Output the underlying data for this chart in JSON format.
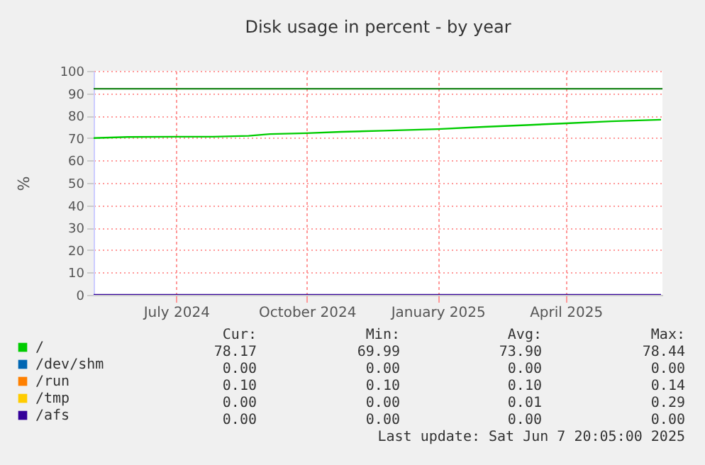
{
  "chart_data": {
    "type": "line",
    "title": "Disk usage in percent - by year",
    "ylabel": "%",
    "x": [
      "2024-05-04",
      "2024-05-28",
      "2024-07-01",
      "2024-07-27",
      "2024-08-21",
      "2024-09-05",
      "2024-10-01",
      "2024-10-25",
      "2024-11-24",
      "2025-01-01",
      "2025-02-02",
      "2025-03-04",
      "2025-04-01",
      "2025-05-03",
      "2025-06-07"
    ],
    "series": [
      {
        "name": "/",
        "color": "#00cc00",
        "values": [
          70.0,
          70.5,
          70.6,
          70.6,
          71.0,
          71.8,
          72.2,
          72.8,
          73.3,
          74.0,
          75.0,
          75.8,
          76.6,
          77.5,
          78.2
        ]
      },
      {
        "name": "/dev/shm",
        "color": "#0066b3",
        "values": [
          null,
          null,
          null,
          null,
          null,
          null,
          null,
          null,
          null,
          null,
          null,
          null,
          null,
          null,
          null
        ]
      },
      {
        "name": "/run",
        "color": "#ff8000",
        "values": [
          null,
          null,
          null,
          null,
          null,
          null,
          null,
          null,
          null,
          null,
          null,
          null,
          null,
          null,
          null
        ]
      },
      {
        "name": "/tmp",
        "color": "#ffcc00",
        "values": [
          null,
          null,
          null,
          null,
          null,
          null,
          null,
          null,
          null,
          null,
          null,
          null,
          null,
          null,
          null
        ]
      },
      {
        "name": "/afs",
        "color": "#330099",
        "values": [
          0,
          0,
          0,
          0,
          0,
          0,
          0,
          0,
          0,
          0,
          0,
          0,
          0,
          0,
          0
        ]
      }
    ],
    "xlim": [
      "2024-05-04",
      "2025-06-08"
    ],
    "xticks": [
      {
        "value": "2024-07-01",
        "label": "July 2024"
      },
      {
        "value": "2024-10-01",
        "label": "October 2024"
      },
      {
        "value": "2025-01-01",
        "label": "January 2025"
      },
      {
        "value": "2025-04-01",
        "label": "April 2025"
      }
    ],
    "ylim": [
      0,
      100
    ],
    "yticks": [
      0,
      10,
      20,
      30,
      40,
      50,
      60,
      70,
      80,
      90,
      100
    ],
    "ref_lines": [
      {
        "axis": "y",
        "value": 92,
        "color": "#007700"
      }
    ],
    "grid": true,
    "legend": "bottom left",
    "annotations": [
      "Cur:",
      "Min:",
      "Avg:",
      "Max:",
      "78.17",
      "69.99",
      "73.90",
      "78.44",
      "0.00",
      "0.00",
      "0.00",
      "0.00",
      "0.10",
      "0.10",
      "0.10",
      "0.14",
      "0.00",
      "0.00",
      "0.01",
      "0.29",
      "0.00",
      "0.00",
      "0.00",
      "0.00",
      "Last update: Sat Jun  7 20:05:00 2025"
    ]
  }
}
